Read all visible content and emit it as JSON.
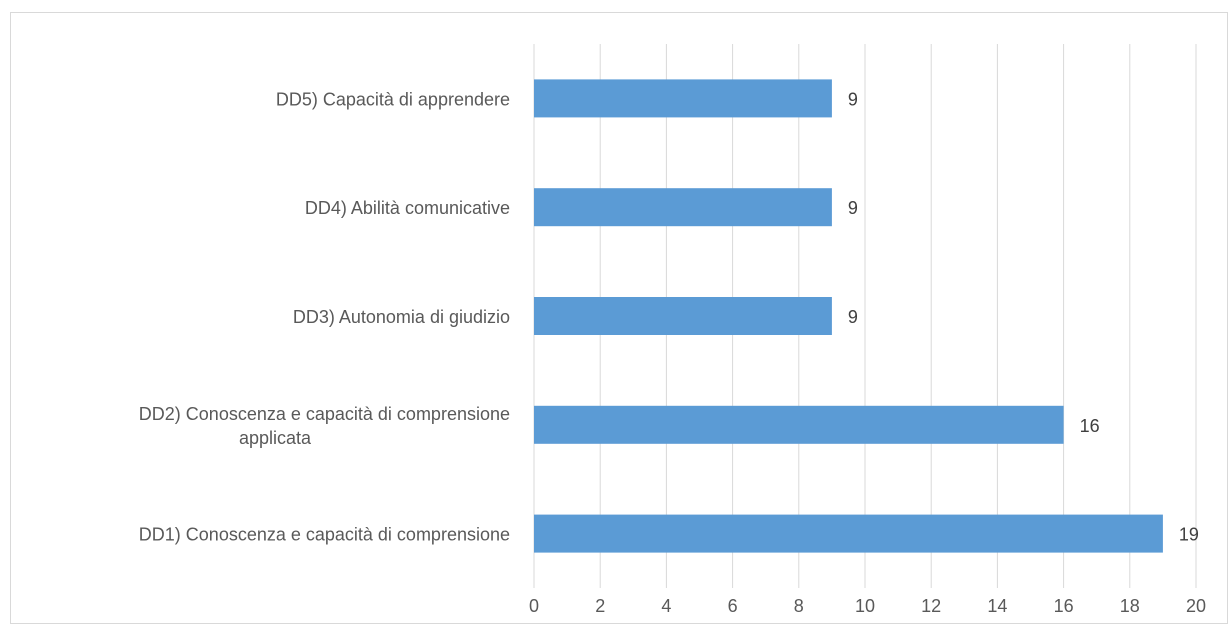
{
  "chart_data": {
    "type": "bar",
    "orientation": "horizontal",
    "categories": [
      [
        "DD1) Conoscenza e capacità di comprensione"
      ],
      [
        "DD2) Conoscenza e capacità di comprensione",
        "applicata"
      ],
      [
        "DD3) Autonomia di giudizio"
      ],
      [
        "DD4) Abilità comunicative"
      ],
      [
        "DD5) Capacità di apprendere"
      ]
    ],
    "values": [
      19,
      16,
      9,
      9,
      9
    ],
    "data_labels": [
      "19",
      "16",
      "9",
      "9",
      "9"
    ],
    "title": "",
    "xlabel": "",
    "ylabel": "",
    "xlim": [
      0,
      20
    ],
    "ticks": [
      0,
      2,
      4,
      6,
      8,
      10,
      12,
      14,
      16,
      18,
      20
    ],
    "tick_labels": [
      "0",
      "2",
      "4",
      "6",
      "8",
      "10",
      "12",
      "14",
      "16",
      "18",
      "20"
    ],
    "grid": "vertical",
    "legend": "none",
    "bar_color": "#5b9bd5",
    "grid_color": "#d9d9d9",
    "text_color": "#595959"
  }
}
